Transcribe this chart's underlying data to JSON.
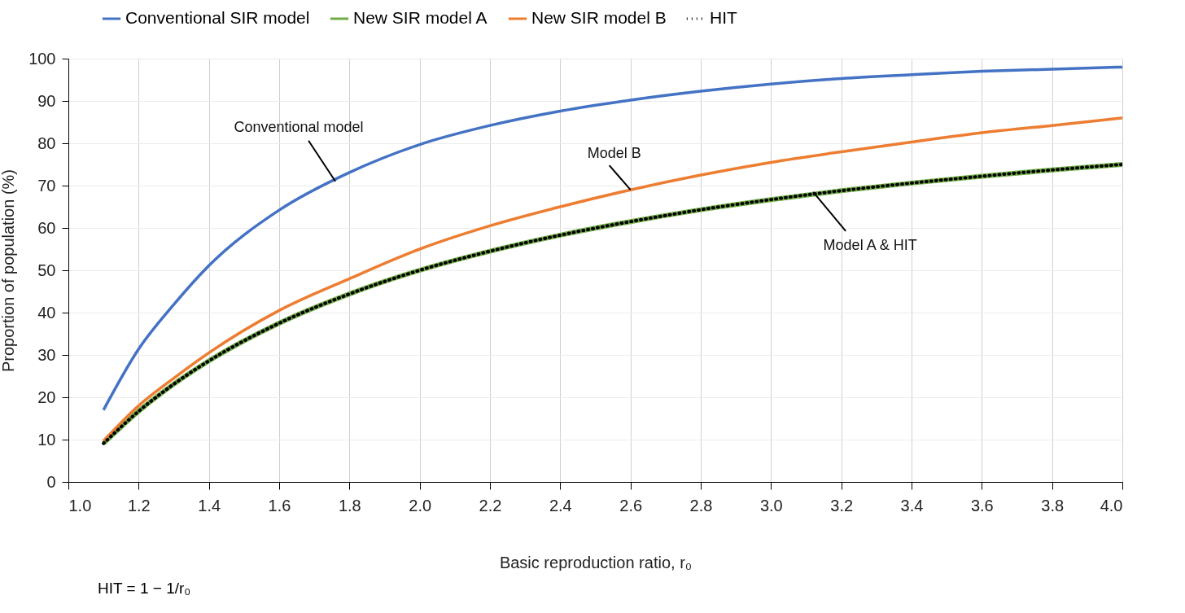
{
  "chart_data": {
    "type": "line",
    "xlabel": "Basic reproduction ratio, r₀",
    "ylabel": "Proportion of population (%)",
    "x": [
      1.1,
      1.2,
      1.3,
      1.4,
      1.6,
      1.8,
      2.0,
      2.2,
      2.4,
      2.6,
      2.8,
      3.0,
      3.2,
      3.4,
      3.6,
      3.8,
      4.0
    ],
    "series": [
      {
        "name": "Conventional SIR model",
        "color": "#4472c4",
        "values": [
          17,
          31.4,
          41.9,
          51.1,
          64.2,
          73.1,
          79.7,
          84.2,
          87.6,
          90.2,
          92.3,
          94.0,
          95.3,
          96.2,
          97.0,
          97.5,
          98.0
        ]
      },
      {
        "name": "New SIR model A",
        "color": "#70ad47",
        "values": [
          9.1,
          16.7,
          23.1,
          28.6,
          37.5,
          44.4,
          50,
          54.5,
          58.3,
          61.5,
          64.3,
          66.7,
          68.8,
          70.6,
          72.2,
          73.7,
          75
        ]
      },
      {
        "name": "New SIR model B",
        "color": "#ed7d31",
        "values": [
          9.7,
          18,
          24.5,
          30.5,
          40.5,
          48,
          55,
          60.5,
          65,
          69,
          72.5,
          75.5,
          78,
          80.3,
          82.5,
          84.2,
          86
        ]
      },
      {
        "name": "HIT",
        "color": "#000000",
        "line_style": "dotted",
        "values": [
          9.1,
          16.7,
          23.1,
          28.6,
          37.5,
          44.4,
          50,
          54.5,
          58.3,
          61.5,
          64.3,
          66.7,
          68.8,
          70.6,
          72.2,
          73.7,
          75
        ]
      }
    ],
    "xlim": [
      1.0,
      4.0
    ],
    "xticks": [
      {
        "value": 1,
        "label": "1.0"
      },
      1.2,
      1.4,
      1.6,
      1.8,
      {
        "value": 2,
        "label": "2.0"
      },
      2.2,
      2.4,
      2.6,
      2.8,
      {
        "value": 3,
        "label": "3.0"
      },
      3.2,
      3.4,
      3.6,
      3.8,
      {
        "value": 4,
        "label": "4.0"
      }
    ],
    "ylim": [
      0,
      100
    ],
    "yticks": [
      0,
      10,
      20,
      30,
      40,
      50,
      60,
      70,
      80,
      90,
      100
    ],
    "grid": true,
    "legend": "top",
    "marker": "none",
    "line_style": "solid",
    "annotations": [
      {
        "text": "Conventional model",
        "x": 1.76,
        "y": 71
      },
      {
        "text": "Model B",
        "x": 2.6,
        "y": 69
      },
      {
        "text": "Model A & HIT",
        "x": 3.12,
        "y": 68.5
      },
      "HIT = 1 − 1/r₀"
    ]
  }
}
